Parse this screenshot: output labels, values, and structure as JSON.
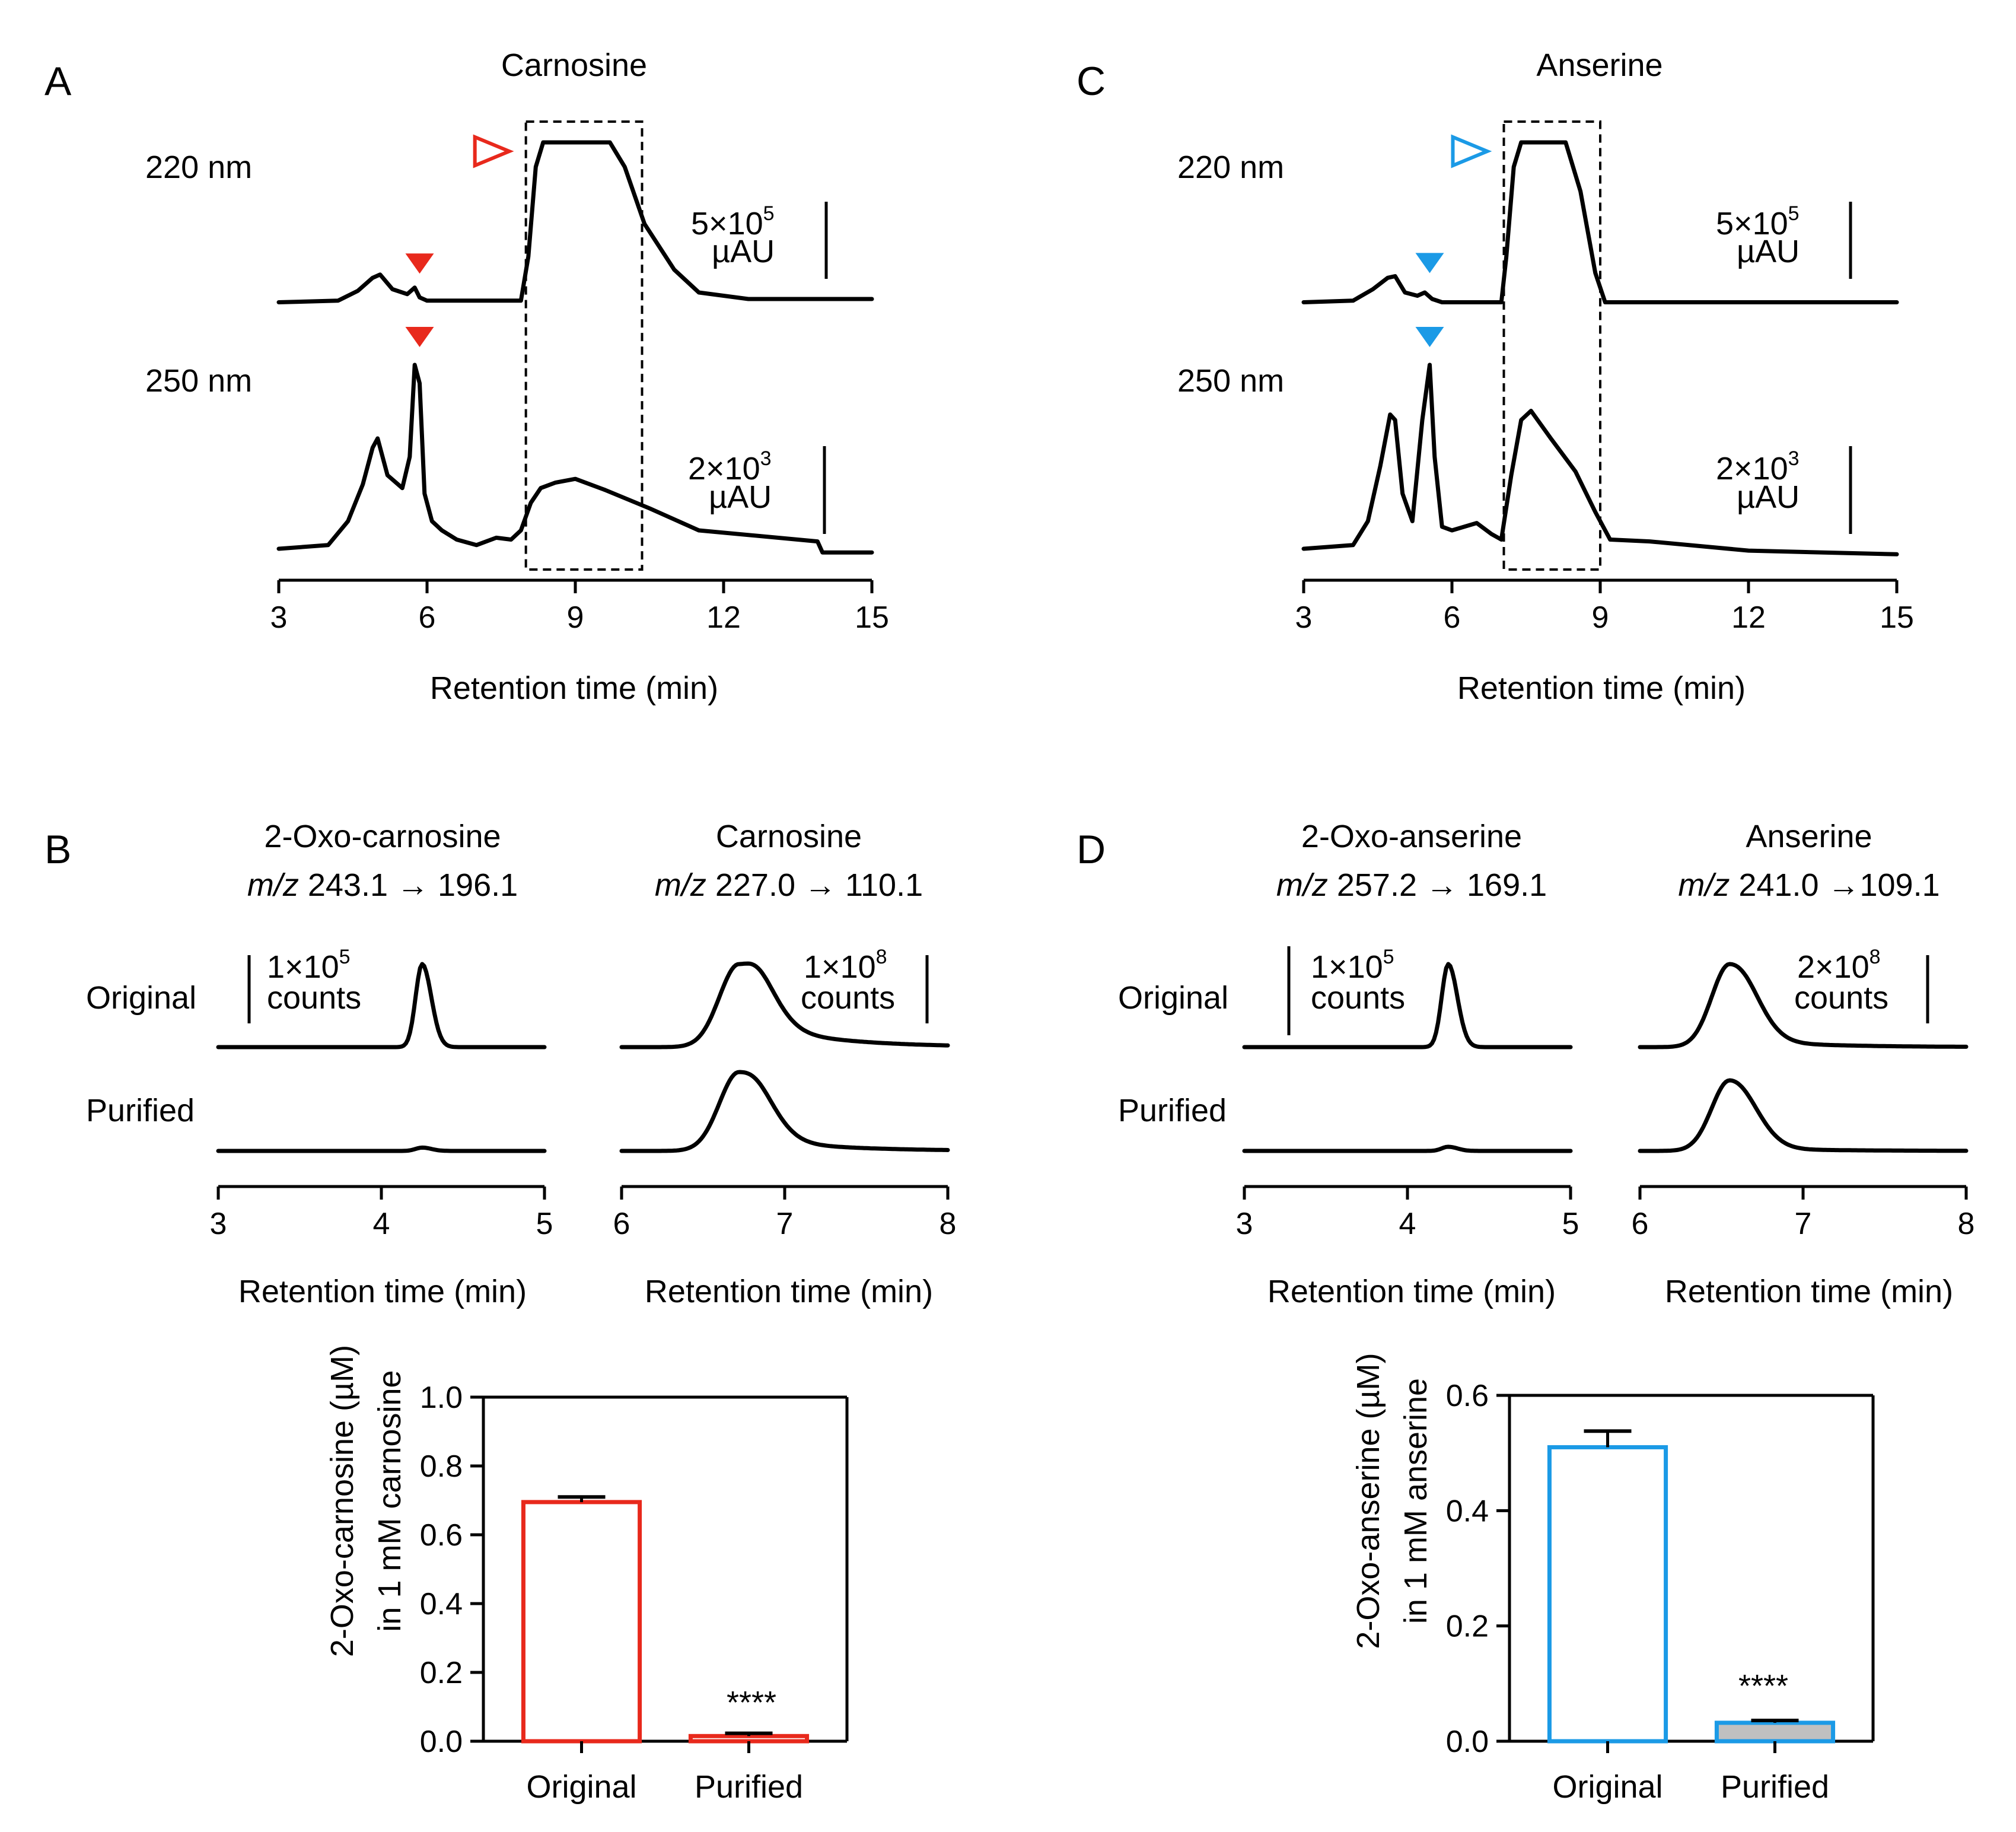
{
  "panels": {
    "A": {
      "letter": "A",
      "title": "Carnosine",
      "wl_top": "220 nm",
      "wl_bottom": "250 nm",
      "scale_top_1": "5×10",
      "scale_top_sup": "5",
      "scale_top_2": "µAU",
      "scale_bottom_1": "2×10",
      "scale_bottom_sup": "3",
      "scale_bottom_2": "µAU",
      "xlabel": "Retention time (min)"
    },
    "C": {
      "letter": "C",
      "title": "Anserine",
      "wl_top": "220 nm",
      "wl_bottom": "250 nm",
      "scale_top_1": "5×10",
      "scale_top_sup": "5",
      "scale_top_2": "µAU",
      "scale_bottom_1": "2×10",
      "scale_bottom_sup": "3",
      "scale_bottom_2": "µAU",
      "xlabel": "Retention time (min)"
    },
    "B": {
      "letter": "B",
      "row_original": "Original",
      "row_purified": "Purified",
      "left_title": "2-Oxo-carnosine",
      "left_mz_italic": "m/z",
      "left_mz": " 243.1 → 196.1",
      "left_scale_1": "1×10",
      "left_scale_sup": "5",
      "left_scale_2": "counts",
      "right_title": "Carnosine",
      "right_mz_italic": "m/z",
      "right_mz": " 227.0 → 110.1",
      "right_scale_1": "1×10",
      "right_scale_sup": "8",
      "right_scale_2": "counts",
      "xlabel": "Retention time (min)"
    },
    "D": {
      "letter": "D",
      "row_original": "Original",
      "row_purified": "Purified",
      "left_title": "2-Oxo-anserine",
      "left_mz_italic": "m/z",
      "left_mz": " 257.2 → 169.1",
      "left_scale_1": "1×10",
      "left_scale_sup": "5",
      "left_scale_2": "counts",
      "right_title": "Anserine",
      "right_mz_italic": "m/z",
      "right_mz": " 241.0 →109.1",
      "right_scale_1": "2×10",
      "right_scale_sup": "8",
      "right_scale_2": "counts",
      "xlabel": "Retention time (min)"
    },
    "bar_carnosine": {
      "ylabel_1": "2-Oxo-carnosine (µM)",
      "ylabel_2": "in 1 mM carnosine",
      "significance": "****"
    },
    "bar_anserine": {
      "ylabel_1": "2-Oxo-anserine (µM)",
      "ylabel_2": "in 1 mM anserine",
      "significance": "****"
    }
  },
  "colors": {
    "carnosine": "#e8291c",
    "anserine": "#1b9ae6",
    "purified_fill_anserine": "#c0c0c0"
  },
  "chart_data": [
    {
      "id": "A-hplc",
      "type": "line",
      "title": "Carnosine",
      "xlabel": "Retention time (min)",
      "xlim": [
        3,
        15
      ],
      "xticks": [
        3,
        6,
        9,
        12,
        15
      ],
      "series": [
        {
          "name": "220 nm",
          "x": [
            3,
            4.2,
            4.6,
            4.9,
            5.05,
            5.3,
            5.6,
            5.75,
            5.85,
            6.0,
            7.0,
            7.9,
            8.05,
            8.2,
            8.35,
            9.2,
            9.7,
            10.0,
            10.4,
            11.0,
            11.5,
            12.5,
            15
          ],
          "y": [
            0.02,
            0.03,
            0.09,
            0.17,
            0.19,
            0.1,
            0.07,
            0.11,
            0.05,
            0.03,
            0.03,
            0.03,
            0.3,
            0.85,
            1.0,
            1.0,
            1.0,
            0.85,
            0.5,
            0.22,
            0.08,
            0.04,
            0.04
          ]
        },
        {
          "name": "250 nm",
          "x": [
            3,
            4.0,
            4.4,
            4.7,
            4.9,
            5.0,
            5.2,
            5.5,
            5.65,
            5.75,
            5.85,
            5.95,
            6.1,
            6.3,
            6.6,
            7.0,
            7.4,
            7.7,
            7.9,
            8.1,
            8.3,
            8.6,
            9.0,
            9.6,
            10.5,
            11.5,
            13.9,
            14.0,
            15
          ],
          "y": [
            0.0,
            0.02,
            0.15,
            0.35,
            0.55,
            0.6,
            0.4,
            0.33,
            0.5,
            1.0,
            0.9,
            0.3,
            0.15,
            0.1,
            0.05,
            0.02,
            0.06,
            0.05,
            0.1,
            0.25,
            0.33,
            0.36,
            0.38,
            0.32,
            0.22,
            0.1,
            0.04,
            -0.02,
            -0.02
          ]
        }
      ],
      "annotations": [
        {
          "type": "open-triangle",
          "x": 8.0,
          "series": "220 nm"
        },
        {
          "type": "filled-triangle",
          "x": 5.85,
          "series": "220 nm"
        },
        {
          "type": "filled-triangle",
          "x": 5.85,
          "series": "250 nm"
        },
        {
          "type": "dashed-box",
          "x_range": [
            8.0,
            10.35
          ]
        }
      ]
    },
    {
      "id": "C-hplc",
      "type": "line",
      "title": "Anserine",
      "xlabel": "Retention time (min)",
      "xlim": [
        3,
        15
      ],
      "xticks": [
        3,
        6,
        9,
        12,
        15
      ],
      "series": [
        {
          "name": "220 nm",
          "x": [
            3,
            4.0,
            4.4,
            4.7,
            4.85,
            5.05,
            5.3,
            5.45,
            5.6,
            5.8,
            6.5,
            7.0,
            7.1,
            7.25,
            7.4,
            8.1,
            8.3,
            8.6,
            8.9,
            9.1,
            15
          ],
          "y": [
            0.02,
            0.03,
            0.1,
            0.17,
            0.18,
            0.08,
            0.06,
            0.08,
            0.04,
            0.02,
            0.02,
            0.02,
            0.3,
            0.85,
            1.0,
            1.0,
            1.0,
            0.7,
            0.2,
            0.02,
            0.02
          ]
        },
        {
          "name": "250 nm",
          "x": [
            3,
            4.0,
            4.3,
            4.55,
            4.75,
            4.85,
            5.0,
            5.2,
            5.4,
            5.55,
            5.65,
            5.8,
            6.0,
            6.5,
            6.8,
            7.0,
            7.2,
            7.4,
            7.6,
            8.0,
            8.5,
            8.9,
            9.2,
            10.0,
            12,
            15
          ],
          "y": [
            0.0,
            0.02,
            0.15,
            0.45,
            0.73,
            0.7,
            0.3,
            0.15,
            0.7,
            1.0,
            0.5,
            0.12,
            0.1,
            0.14,
            0.08,
            0.05,
            0.4,
            0.7,
            0.75,
            0.6,
            0.42,
            0.2,
            0.05,
            0.04,
            -0.01,
            -0.03
          ]
        }
      ],
      "annotations": [
        {
          "type": "open-triangle",
          "x": 7.05,
          "series": "220 nm"
        },
        {
          "type": "filled-triangle",
          "x": 5.55,
          "series": "220 nm"
        },
        {
          "type": "filled-triangle",
          "x": 5.55,
          "series": "250 nm"
        },
        {
          "type": "dashed-box",
          "x_range": [
            7.05,
            9.0
          ]
        }
      ]
    },
    {
      "id": "B-mrm",
      "type": "line",
      "xlabel": "Retention time (min)",
      "subplots": [
        {
          "title": "2-Oxo-carnosine",
          "xlim": [
            3,
            5
          ],
          "xticks": [
            3,
            4,
            5
          ],
          "series": [
            {
              "name": "Original",
              "peak_x": 4.25,
              "peak_height": 1.0,
              "width": 0.04
            },
            {
              "name": "Purified",
              "peak_x": 4.25,
              "peak_height": 0.04,
              "width": 0.04
            }
          ]
        },
        {
          "title": "Carnosine",
          "xlim": [
            6,
            8
          ],
          "xticks": [
            6,
            7,
            8
          ],
          "series": [
            {
              "name": "Original",
              "peak_x": 6.72,
              "peak_height": 1.0,
              "width": 0.12,
              "tail": 0.35
            },
            {
              "name": "Purified",
              "peak_x": 6.72,
              "peak_height": 0.95,
              "width": 0.12,
              "tail": 0.2
            }
          ]
        }
      ]
    },
    {
      "id": "D-mrm",
      "type": "line",
      "xlabel": "Retention time (min)",
      "subplots": [
        {
          "title": "2-Oxo-anserine",
          "xlim": [
            3,
            5
          ],
          "xticks": [
            3,
            4,
            5
          ],
          "series": [
            {
              "name": "Original",
              "peak_x": 4.25,
              "peak_height": 1.0,
              "width": 0.04
            },
            {
              "name": "Purified",
              "peak_x": 4.25,
              "peak_height": 0.05,
              "width": 0.04
            }
          ]
        },
        {
          "title": "Anserine",
          "xlim": [
            6,
            8
          ],
          "xticks": [
            6,
            7,
            8
          ],
          "series": [
            {
              "name": "Original",
              "peak_x": 6.55,
              "peak_height": 1.0,
              "width": 0.11,
              "tail": 0.1
            },
            {
              "name": "Purified",
              "peak_x": 6.55,
              "peak_height": 0.85,
              "width": 0.11,
              "tail": 0.05
            }
          ]
        }
      ]
    },
    {
      "id": "B-bar",
      "type": "bar",
      "categories": [
        "Original",
        "Purified"
      ],
      "values": [
        0.695,
        0.015
      ],
      "errors": [
        0.015,
        0.008
      ],
      "ylabel": "2-Oxo-carnosine (µM) in 1 mM carnosine",
      "ylim": [
        0,
        1.0
      ],
      "yticks": [
        "0.0",
        "0.2",
        "0.4",
        "0.6",
        "0.8",
        "1.0"
      ]
    },
    {
      "id": "D-bar",
      "type": "bar",
      "categories": [
        "Original",
        "Purified"
      ],
      "values": [
        0.51,
        0.032
      ],
      "errors": [
        0.028,
        0.004
      ],
      "ylabel": "2-Oxo-anserine (µM) in 1 mM anserine",
      "ylim": [
        0,
        0.6
      ],
      "yticks": [
        "0.0",
        "0.2",
        "0.4",
        "0.6"
      ]
    }
  ]
}
